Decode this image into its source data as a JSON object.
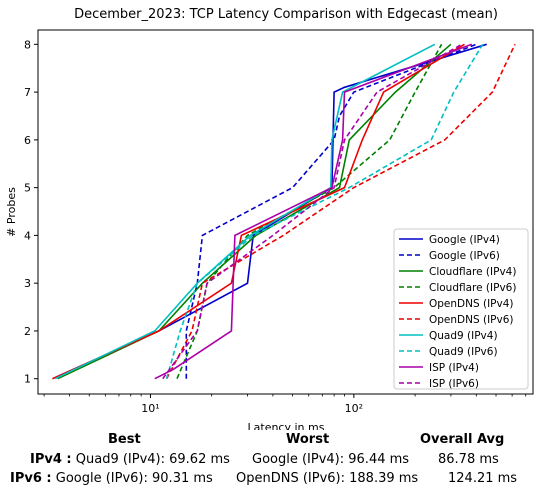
{
  "chart_data": {
    "type": "line",
    "title": "December_2023: TCP Latency Comparison with Edgecast (mean)",
    "xlabel": "Latency in ms",
    "ylabel": "# Probes",
    "xscale": "log",
    "xlim": [
      2.8,
      760
    ],
    "ylim": [
      0.68,
      8.3
    ],
    "xticks": [
      10,
      100
    ],
    "xtick_labels": [
      "10¹",
      "10²"
    ],
    "yticks": [
      1,
      2,
      3,
      4,
      5,
      6,
      7,
      8
    ],
    "grid": false,
    "legend_position": "lower-right",
    "series": [
      {
        "name": "Google (IPv4)",
        "color": "#0000cc",
        "dash": "solid",
        "x": [
          3.3,
          11,
          30,
          32,
          78,
          79,
          80,
          90,
          450
        ],
        "y": [
          1,
          2,
          3,
          4,
          5,
          6,
          7,
          7.1,
          8
        ]
      },
      {
        "name": "Google (IPv6)",
        "color": "#0000cc",
        "dash": "dashed",
        "x": [
          15,
          15,
          17,
          18,
          50,
          80,
          85,
          100,
          400
        ],
        "y": [
          1,
          2,
          3,
          4,
          5,
          6,
          6.5,
          7,
          8
        ]
      },
      {
        "name": "Cloudflare (IPv4)",
        "color": "#008000",
        "dash": "solid",
        "x": [
          3.5,
          11,
          18,
          33,
          85,
          95,
          160,
          300
        ],
        "y": [
          1,
          2,
          3,
          4,
          5,
          6,
          7,
          8
        ]
      },
      {
        "name": "Cloudflare (IPv6)",
        "color": "#008000",
        "dash": "dashed",
        "x": [
          13.5,
          17,
          19,
          30,
          80,
          150,
          200,
          270
        ],
        "y": [
          1,
          2,
          3,
          4,
          5,
          6,
          7,
          8
        ]
      },
      {
        "name": "OpenDNS (IPv4)",
        "color": "#ee0000",
        "dash": "solid",
        "x": [
          3.3,
          11,
          25,
          28,
          90,
          110,
          140,
          350
        ],
        "y": [
          1,
          2,
          3,
          4,
          5,
          6,
          7,
          8
        ]
      },
      {
        "name": "OpenDNS (IPv6)",
        "color": "#ee0000",
        "dash": "dashed",
        "x": [
          12,
          16,
          18,
          45,
          100,
          280,
          480,
          620
        ],
        "y": [
          1,
          2,
          3,
          4,
          5,
          6,
          7,
          8
        ]
      },
      {
        "name": "Quad9 (IPv4)",
        "color": "#00c0c0",
        "dash": "solid",
        "x": [
          3.4,
          10.5,
          17,
          31,
          77,
          78,
          88,
          250
        ],
        "y": [
          1,
          2,
          3,
          4,
          5,
          6,
          7,
          8
        ]
      },
      {
        "name": "Quad9 (IPv6)",
        "color": "#00c0c0",
        "dash": "dashed",
        "x": [
          12,
          14,
          17,
          32,
          95,
          240,
          310,
          430
        ],
        "y": [
          1,
          2,
          3,
          4,
          5,
          6,
          7,
          8
        ]
      },
      {
        "name": "ISP (IPv4)",
        "color": "#aa00aa",
        "dash": "solid",
        "x": [
          10.5,
          13,
          25,
          26,
          78,
          88,
          90,
          380
        ],
        "y": [
          1,
          1.2,
          2,
          4,
          5,
          6,
          7,
          8
        ]
      },
      {
        "name": "ISP (IPv6)",
        "color": "#aa00aa",
        "dash": "dashed",
        "x": [
          11.5,
          17,
          19,
          40,
          80,
          90,
          130,
          340
        ],
        "y": [
          1,
          2,
          3,
          4,
          5,
          6,
          7,
          8
        ]
      }
    ]
  },
  "summary": {
    "headers": {
      "best": "Best",
      "worst": "Worst",
      "avg": "Overall Avg"
    },
    "rows": [
      {
        "label": "IPv4 :",
        "best": "Quad9 (IPv4): 69.62 ms",
        "worst": "Google (IPv4): 96.44 ms",
        "avg": "86.78 ms"
      },
      {
        "label": "IPv6 :",
        "best": "Google (IPv6): 90.31 ms",
        "worst": "OpenDNS (IPv6): 188.39 ms",
        "avg": "124.21 ms"
      }
    ]
  }
}
